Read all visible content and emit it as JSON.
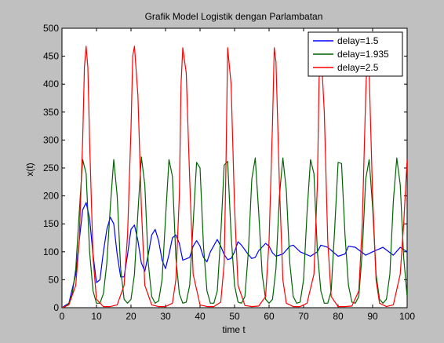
{
  "chart_data": {
    "type": "line",
    "title": "Grafik Model Logistik dengan Parlambatan",
    "xlabel": "time t",
    "ylabel": "x(t)",
    "xlim": [
      0,
      100
    ],
    "ylim": [
      0,
      500
    ],
    "xticks": [
      0,
      10,
      20,
      30,
      40,
      50,
      60,
      70,
      80,
      90,
      100
    ],
    "yticks": [
      0,
      50,
      100,
      150,
      200,
      250,
      300,
      350,
      400,
      450,
      500
    ],
    "grid": false,
    "legend_position": "top-right",
    "series": [
      {
        "name": "delay=1.5",
        "color": "#0000ff",
        "x": [
          0,
          2,
          4,
          5,
          6,
          7,
          8,
          9,
          10,
          11,
          12,
          13,
          14,
          15,
          16,
          17,
          18,
          19,
          20,
          21,
          22,
          23,
          24,
          25,
          26,
          27,
          28,
          29,
          30,
          31,
          32,
          33,
          34,
          35,
          37,
          38,
          39,
          40,
          41,
          42,
          43,
          45,
          46,
          47,
          48,
          49,
          50,
          51,
          52,
          54,
          55,
          56,
          57,
          59,
          60,
          61,
          62,
          64,
          66,
          67,
          69,
          72,
          74,
          75,
          77,
          80,
          82,
          83,
          85,
          88,
          90,
          93,
          96,
          98,
          100
        ],
        "y": [
          0,
          8,
          60,
          120,
          175,
          188,
          160,
          95,
          45,
          50,
          100,
          140,
          162,
          150,
          95,
          55,
          55,
          95,
          140,
          148,
          120,
          80,
          65,
          95,
          130,
          140,
          120,
          85,
          70,
          95,
          125,
          130,
          115,
          85,
          90,
          110,
          120,
          110,
          90,
          82,
          100,
          122,
          110,
          95,
          86,
          88,
          100,
          118,
          112,
          95,
          88,
          90,
          102,
          115,
          110,
          98,
          92,
          96,
          110,
          112,
          100,
          92,
          100,
          112,
          108,
          92,
          96,
          110,
          108,
          94,
          100,
          108,
          94,
          108,
          100
        ]
      },
      {
        "name": "delay=1.935",
        "color": "#006400",
        "x": [
          0,
          1,
          2,
          3,
          4,
          5,
          6,
          7,
          8,
          9,
          10,
          11,
          12,
          13,
          14,
          15,
          16,
          17,
          18,
          19,
          20,
          21,
          22,
          23,
          24,
          25,
          26,
          27,
          28,
          29,
          30,
          31,
          32,
          33,
          34,
          35,
          36,
          37,
          38,
          39,
          40,
          41,
          42,
          43,
          44,
          45,
          46,
          47,
          48,
          49,
          50,
          51,
          52,
          53,
          54,
          55,
          56,
          57,
          58,
          59,
          60,
          61,
          62,
          63,
          64,
          65,
          66,
          67,
          68,
          69,
          70,
          71,
          72,
          73,
          74,
          75,
          76,
          77,
          78,
          79,
          80,
          81,
          82,
          83,
          84,
          85,
          86,
          87,
          88,
          89,
          90,
          91,
          92,
          93,
          94,
          95,
          96,
          97,
          98,
          99,
          100
        ],
        "y": [
          0,
          2,
          8,
          25,
          70,
          170,
          265,
          240,
          100,
          30,
          8,
          8,
          25,
          80,
          180,
          265,
          200,
          70,
          15,
          8,
          15,
          60,
          170,
          270,
          220,
          80,
          20,
          8,
          12,
          50,
          160,
          265,
          235,
          90,
          25,
          8,
          10,
          40,
          150,
          260,
          250,
          110,
          30,
          8,
          8,
          30,
          130,
          255,
          262,
          130,
          40,
          10,
          8,
          20,
          100,
          230,
          268,
          170,
          60,
          15,
          8,
          15,
          70,
          200,
          268,
          210,
          80,
          20,
          8,
          10,
          50,
          170,
          265,
          240,
          100,
          30,
          8,
          8,
          30,
          140,
          260,
          258,
          130,
          40,
          10,
          8,
          20,
          100,
          230,
          265,
          180,
          60,
          15,
          8,
          15,
          60,
          190,
          268,
          220,
          90,
          20
        ]
      },
      {
        "name": "delay=2.5",
        "color": "#ff0000",
        "x": [
          0,
          2,
          4,
          5,
          6,
          6.5,
          7,
          7.5,
          8,
          9,
          10,
          12,
          14,
          16,
          18,
          19,
          20,
          20.5,
          21,
          22,
          23,
          24,
          26,
          28,
          30,
          32,
          33,
          34,
          34.5,
          35,
          36,
          37,
          38,
          40,
          42,
          44,
          46,
          47,
          47.5,
          48,
          49,
          50,
          51,
          53,
          55,
          57,
          59,
          60,
          61,
          61.5,
          62,
          63,
          64,
          65,
          67,
          69,
          71,
          73,
          74,
          74.5,
          75,
          76,
          77,
          78,
          80,
          82,
          84,
          86,
          87,
          88,
          88.5,
          89,
          90,
          91,
          92,
          94,
          96,
          98,
          99,
          100
        ],
        "y": [
          0,
          5,
          40,
          120,
          300,
          430,
          468,
          430,
          300,
          90,
          15,
          2,
          2,
          5,
          40,
          130,
          320,
          450,
          468,
          380,
          180,
          40,
          5,
          2,
          2,
          8,
          50,
          200,
          400,
          465,
          420,
          230,
          60,
          5,
          2,
          2,
          10,
          80,
          250,
          465,
          400,
          180,
          40,
          4,
          2,
          3,
          20,
          120,
          330,
          465,
          440,
          220,
          50,
          8,
          2,
          2,
          8,
          60,
          220,
          410,
          468,
          350,
          120,
          20,
          2,
          2,
          3,
          30,
          150,
          380,
          466,
          420,
          200,
          50,
          8,
          2,
          5,
          60,
          150,
          265
        ]
      }
    ]
  }
}
